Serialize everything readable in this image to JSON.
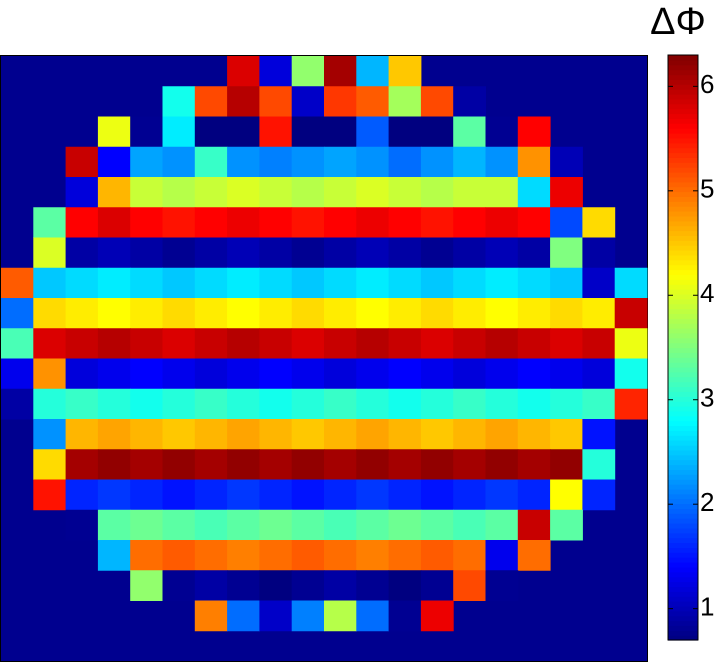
{
  "chart_data": {
    "type": "heatmap",
    "title": "ΔΦ",
    "zlim": [
      0.7,
      6.3
    ],
    "zticks": [
      1,
      2,
      3,
      4,
      5,
      6
    ],
    "values": [
      [
        null,
        null,
        null,
        null,
        null,
        null,
        null,
        5.8,
        1.2,
        3.6,
        6.1,
        2.4,
        4.5,
        null,
        null,
        null,
        null,
        null,
        null,
        null
      ],
      [
        null,
        null,
        null,
        null,
        null,
        2.9,
        5.2,
        6.0,
        5.2,
        1.1,
        5.3,
        5.1,
        3.7,
        5.2,
        0.9,
        null,
        null,
        null,
        null,
        null
      ],
      [
        null,
        null,
        null,
        4.1,
        0.8,
        2.7,
        0.7,
        0.7,
        5.5,
        0.7,
        0.7,
        1.9,
        0.7,
        0.7,
        3.3,
        0.8,
        5.6,
        null,
        null,
        null
      ],
      [
        null,
        null,
        5.9,
        1.4,
        2.3,
        2.2,
        3.1,
        2.2,
        2.1,
        2.2,
        2.3,
        2.2,
        2.0,
        2.2,
        2.4,
        2.2,
        4.8,
        1.0,
        null,
        null
      ],
      [
        null,
        null,
        1.2,
        4.6,
        3.9,
        3.8,
        3.9,
        4.0,
        3.9,
        3.8,
        3.9,
        4.0,
        3.9,
        3.8,
        3.9,
        3.9,
        2.6,
        5.7,
        null,
        null
      ],
      [
        null,
        3.3,
        5.6,
        5.8,
        5.6,
        5.5,
        5.6,
        5.7,
        5.6,
        5.5,
        5.6,
        5.7,
        5.6,
        5.5,
        5.6,
        5.7,
        5.6,
        1.8,
        4.4,
        null
      ],
      [
        null,
        4.0,
        0.9,
        1.0,
        0.9,
        0.8,
        0.9,
        1.0,
        0.9,
        0.8,
        0.9,
        1.0,
        0.9,
        0.8,
        0.9,
        1.0,
        0.9,
        3.5,
        0.9,
        null
      ],
      [
        5.1,
        2.5,
        2.6,
        2.7,
        2.6,
        2.5,
        2.6,
        2.7,
        2.6,
        2.5,
        2.6,
        2.7,
        2.6,
        2.5,
        2.6,
        2.7,
        2.6,
        2.5,
        1.1,
        2.6
      ],
      [
        2.0,
        4.4,
        4.3,
        4.2,
        4.3,
        4.4,
        4.3,
        4.2,
        4.3,
        4.4,
        4.3,
        4.2,
        4.3,
        4.4,
        4.3,
        4.2,
        4.3,
        4.4,
        4.3,
        5.9
      ],
      [
        3.2,
        5.8,
        5.9,
        6.0,
        5.9,
        5.8,
        5.9,
        6.0,
        5.9,
        5.8,
        5.9,
        6.0,
        5.9,
        5.8,
        5.9,
        6.0,
        5.9,
        5.8,
        5.9,
        4.1
      ],
      [
        1.3,
        4.8,
        1.2,
        1.3,
        1.4,
        1.3,
        1.2,
        1.3,
        1.4,
        1.3,
        1.2,
        1.3,
        1.4,
        1.3,
        1.2,
        1.3,
        1.4,
        1.3,
        1.2,
        2.9
      ],
      [
        0.9,
        3.0,
        3.1,
        3.0,
        2.9,
        3.0,
        3.1,
        3.0,
        2.9,
        3.0,
        3.1,
        3.0,
        2.9,
        3.0,
        3.1,
        3.0,
        2.9,
        3.0,
        3.1,
        5.4
      ],
      [
        null,
        2.2,
        4.6,
        4.7,
        4.6,
        4.5,
        4.6,
        4.7,
        4.6,
        4.5,
        4.6,
        4.7,
        4.6,
        4.5,
        4.6,
        4.7,
        4.6,
        4.5,
        1.5,
        null
      ],
      [
        null,
        4.4,
        6.1,
        6.2,
        6.1,
        6.2,
        6.1,
        6.2,
        6.1,
        6.2,
        6.1,
        6.2,
        6.1,
        6.2,
        6.1,
        6.2,
        6.1,
        6.2,
        3.0,
        null
      ],
      [
        null,
        5.5,
        1.6,
        1.7,
        1.6,
        1.5,
        1.6,
        1.7,
        1.6,
        1.5,
        1.6,
        1.7,
        1.6,
        1.5,
        1.6,
        1.7,
        1.6,
        4.2,
        1.6,
        null
      ],
      [
        null,
        null,
        0.8,
        3.3,
        3.4,
        3.3,
        3.2,
        3.3,
        3.4,
        3.3,
        3.2,
        3.3,
        3.4,
        3.3,
        3.2,
        3.3,
        5.9,
        3.3,
        null,
        null
      ],
      [
        null,
        null,
        null,
        2.4,
        5.0,
        5.1,
        5.0,
        4.9,
        5.0,
        5.1,
        5.0,
        4.9,
        5.0,
        5.1,
        5.0,
        1.3,
        5.0,
        null,
        null,
        null
      ],
      [
        null,
        null,
        null,
        null,
        3.6,
        0.8,
        0.9,
        0.8,
        0.7,
        0.8,
        0.9,
        0.8,
        0.7,
        0.8,
        5.2,
        0.8,
        null,
        null,
        null,
        null
      ],
      [
        null,
        null,
        null,
        null,
        null,
        null,
        4.9,
        2.0,
        1.1,
        2.1,
        3.8,
        2.0,
        0.8,
        5.7,
        null,
        null,
        null,
        null,
        null,
        null
      ],
      [
        null,
        null,
        null,
        null,
        null,
        null,
        null,
        null,
        null,
        null,
        null,
        null,
        null,
        null,
        null,
        null,
        null,
        null,
        null,
        null
      ]
    ]
  }
}
